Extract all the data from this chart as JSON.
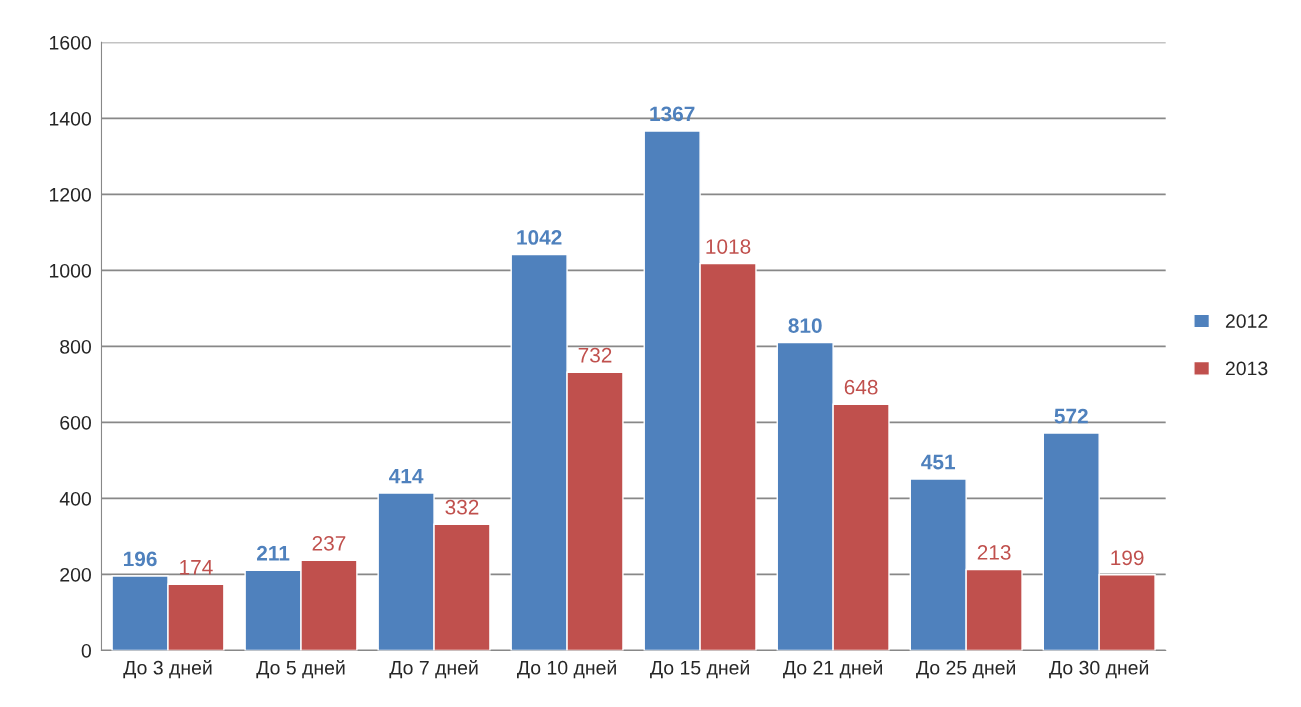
{
  "chart_data": {
    "type": "bar",
    "categories": [
      "До 3 дней",
      "До 5 дней",
      "До 7 дней",
      "До 10 дней",
      "До 15 дней",
      "До 21 дней",
      "До 25 дней",
      "До 30 дней"
    ],
    "series": [
      {
        "name": "2012",
        "color": "#4f81bd",
        "values": [
          196,
          211,
          414,
          1042,
          1367,
          810,
          451,
          572
        ]
      },
      {
        "name": "2013",
        "color": "#c0504d",
        "values": [
          174,
          237,
          332,
          732,
          1018,
          648,
          213,
          199
        ]
      }
    ],
    "ylim": [
      0,
      1600
    ],
    "yticks": [
      0,
      200,
      400,
      600,
      800,
      1000,
      1200,
      1400,
      1600
    ],
    "grid": "y",
    "legend": "right",
    "data_labels": true
  }
}
